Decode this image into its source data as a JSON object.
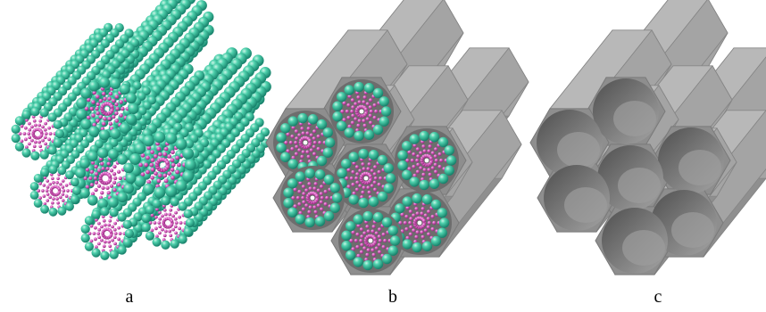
{
  "panels": [
    {
      "id": "a",
      "label": "a"
    },
    {
      "id": "b",
      "label": "b"
    },
    {
      "id": "c",
      "label": "c"
    }
  ],
  "colors": {
    "bead": "#3fc4a2",
    "bead_dark": "#1e8e72",
    "core": "#dd5fc4",
    "core_dark": "#9e2f86",
    "matrix_front": "#8c8c8c",
    "matrix_side": "#9d9d9d",
    "matrix_top": "#b0b0b0",
    "pore": "#6e6e6e"
  }
}
